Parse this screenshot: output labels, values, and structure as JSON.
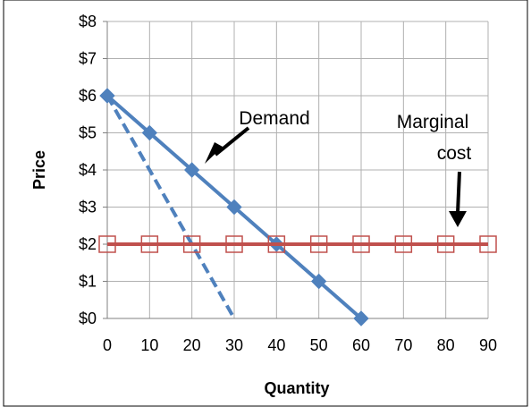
{
  "colors": {
    "demand": "#4f81bd",
    "marginal_cost": "#c0504d",
    "grid": "#b0b0b0",
    "frame": "#000000",
    "background": "#ffffff"
  },
  "chart_data": {
    "type": "line",
    "xlabel": "Quantity",
    "ylabel": "Price",
    "xlim": [
      0,
      90
    ],
    "ylim": [
      0,
      8
    ],
    "x_ticks": [
      "0",
      "10",
      "20",
      "30",
      "40",
      "50",
      "60",
      "70",
      "80",
      "90"
    ],
    "y_ticks": [
      "$0",
      "$1",
      "$2",
      "$3",
      "$4",
      "$5",
      "$6",
      "$7",
      "$8"
    ],
    "grid": true,
    "series": [
      {
        "key": "demand",
        "marker": "diamond",
        "style": "solid",
        "points": [
          [
            0,
            6
          ],
          [
            10,
            5
          ],
          [
            20,
            4
          ],
          [
            30,
            3
          ],
          [
            40,
            2
          ],
          [
            50,
            1
          ],
          [
            60,
            0
          ]
        ]
      },
      {
        "key": "marginal_revenue",
        "marker": "none",
        "style": "dashed",
        "points": [
          [
            0,
            6
          ],
          [
            30,
            0
          ]
        ]
      },
      {
        "key": "marginal_cost",
        "marker": "square-open",
        "style": "solid",
        "points": [
          [
            0,
            2
          ],
          [
            10,
            2
          ],
          [
            20,
            2
          ],
          [
            30,
            2
          ],
          [
            40,
            2
          ],
          [
            50,
            2
          ],
          [
            60,
            2
          ],
          [
            70,
            2
          ],
          [
            80,
            2
          ],
          [
            90,
            2
          ]
        ]
      }
    ],
    "annotations": [
      {
        "key": "demand_label",
        "text": "Demand",
        "lines": [
          "Demand"
        ]
      },
      {
        "key": "mc_label",
        "text": "Marginal cost",
        "lines": [
          "Marginal",
          "cost"
        ]
      }
    ]
  }
}
